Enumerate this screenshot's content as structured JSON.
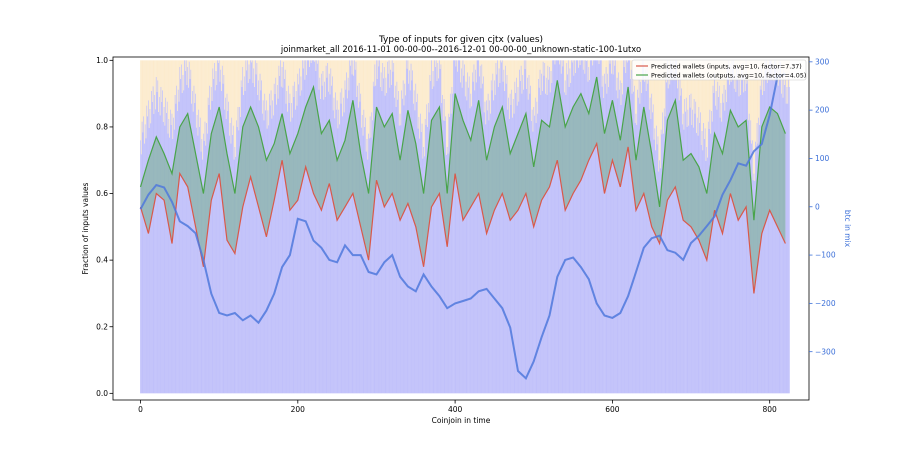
{
  "chart_data": {
    "type": "bar",
    "title": "Type of inputs for given cjtx (values)",
    "subtitle": "joinmarket_all 2016-11-01 00-00-00--2016-12-01 00-00-00_unknown-static-100-1utxo",
    "xlabel": "Coinjoin in time",
    "ylabel": "Fraction of inputs values",
    "y2label": "btc in mix",
    "xlim": [
      -35,
      850
    ],
    "ylim": [
      -0.02,
      1.01
    ],
    "y2lim": [
      -400,
      310
    ],
    "x_ticks": [
      0,
      200,
      400,
      600,
      800
    ],
    "y_ticks": [
      0.0,
      0.2,
      0.4,
      0.6,
      0.8,
      1.0
    ],
    "y2_ticks": [
      -300,
      -200,
      -100,
      0,
      100,
      200,
      300
    ],
    "grid": false,
    "legend_position": "top-right",
    "n_coinjoins": 826,
    "colors": {
      "bars": "#8e8ef5",
      "bars_top": "#fbe3b8",
      "inputs_line": "#d9594a",
      "outputs_line": "#49a44a",
      "mix_line": "#4f78dc",
      "axis2": "#3b6fd8"
    },
    "series": [
      {
        "name": "Predicted wallets (inputs, avg=10, factor=7.37)",
        "axis": "left",
        "x": [
          0,
          10,
          20,
          30,
          40,
          50,
          60,
          70,
          80,
          90,
          100,
          110,
          120,
          130,
          140,
          150,
          160,
          170,
          180,
          190,
          200,
          210,
          220,
          230,
          240,
          250,
          260,
          270,
          280,
          290,
          300,
          310,
          320,
          330,
          340,
          350,
          360,
          370,
          380,
          390,
          400,
          410,
          420,
          430,
          440,
          450,
          460,
          470,
          480,
          490,
          500,
          510,
          520,
          530,
          540,
          550,
          560,
          570,
          580,
          590,
          600,
          610,
          620,
          630,
          640,
          650,
          660,
          670,
          680,
          690,
          700,
          710,
          720,
          730,
          740,
          750,
          760,
          770,
          780,
          790,
          800,
          810,
          820
        ],
        "values": [
          0.56,
          0.48,
          0.6,
          0.58,
          0.45,
          0.66,
          0.62,
          0.5,
          0.38,
          0.58,
          0.66,
          0.46,
          0.42,
          0.56,
          0.65,
          0.56,
          0.47,
          0.58,
          0.7,
          0.55,
          0.58,
          0.68,
          0.6,
          0.55,
          0.63,
          0.52,
          0.56,
          0.6,
          0.5,
          0.4,
          0.64,
          0.56,
          0.6,
          0.52,
          0.57,
          0.5,
          0.38,
          0.56,
          0.6,
          0.44,
          0.66,
          0.52,
          0.56,
          0.6,
          0.48,
          0.55,
          0.6,
          0.52,
          0.55,
          0.6,
          0.5,
          0.58,
          0.62,
          0.7,
          0.55,
          0.6,
          0.64,
          0.7,
          0.75,
          0.6,
          0.7,
          0.62,
          0.74,
          0.55,
          0.6,
          0.5,
          0.45,
          0.58,
          0.62,
          0.52,
          0.5,
          0.46,
          0.4,
          0.55,
          0.48,
          0.6,
          0.52,
          0.56,
          0.3,
          0.48,
          0.55,
          0.5,
          0.45
        ]
      },
      {
        "name": "Predicted wallets (outputs, avg=10, factor=4.05)",
        "axis": "left",
        "x": [
          0,
          10,
          20,
          30,
          40,
          50,
          60,
          70,
          80,
          90,
          100,
          110,
          120,
          130,
          140,
          150,
          160,
          170,
          180,
          190,
          200,
          210,
          220,
          230,
          240,
          250,
          260,
          270,
          280,
          290,
          300,
          310,
          320,
          330,
          340,
          350,
          360,
          370,
          380,
          390,
          400,
          410,
          420,
          430,
          440,
          450,
          460,
          470,
          480,
          490,
          500,
          510,
          520,
          530,
          540,
          550,
          560,
          570,
          580,
          590,
          600,
          610,
          620,
          630,
          640,
          650,
          660,
          670,
          680,
          690,
          700,
          710,
          720,
          730,
          740,
          750,
          760,
          770,
          780,
          790,
          800,
          810,
          820
        ],
        "values": [
          0.62,
          0.7,
          0.77,
          0.72,
          0.66,
          0.8,
          0.84,
          0.72,
          0.6,
          0.78,
          0.86,
          0.72,
          0.6,
          0.8,
          0.86,
          0.8,
          0.7,
          0.75,
          0.84,
          0.72,
          0.78,
          0.86,
          0.92,
          0.78,
          0.82,
          0.7,
          0.76,
          0.88,
          0.72,
          0.6,
          0.86,
          0.8,
          0.84,
          0.7,
          0.85,
          0.75,
          0.6,
          0.82,
          0.86,
          0.6,
          0.9,
          0.82,
          0.76,
          0.88,
          0.7,
          0.8,
          0.86,
          0.72,
          0.78,
          0.84,
          0.68,
          0.82,
          0.8,
          0.94,
          0.8,
          0.86,
          0.9,
          0.84,
          0.95,
          0.78,
          0.88,
          0.76,
          0.92,
          0.7,
          0.86,
          0.72,
          0.56,
          0.82,
          0.88,
          0.7,
          0.72,
          0.68,
          0.6,
          0.78,
          0.72,
          0.85,
          0.8,
          0.82,
          0.52,
          0.8,
          0.86,
          0.84,
          0.78
        ]
      },
      {
        "name": "",
        "axis": "right",
        "x": [
          0,
          10,
          20,
          30,
          40,
          50,
          60,
          70,
          80,
          90,
          100,
          110,
          120,
          130,
          140,
          150,
          160,
          170,
          180,
          190,
          200,
          210,
          220,
          230,
          240,
          250,
          260,
          270,
          280,
          290,
          300,
          310,
          320,
          330,
          340,
          350,
          360,
          370,
          380,
          390,
          400,
          410,
          420,
          430,
          440,
          450,
          460,
          470,
          480,
          490,
          500,
          510,
          520,
          530,
          540,
          550,
          560,
          570,
          580,
          590,
          600,
          610,
          620,
          630,
          640,
          650,
          660,
          670,
          680,
          690,
          700,
          710,
          720,
          730,
          740,
          750,
          760,
          770,
          780,
          790,
          800,
          810,
          820
        ],
        "values": [
          -5,
          25,
          45,
          40,
          10,
          -30,
          -40,
          -55,
          -110,
          -180,
          -220,
          -225,
          -220,
          -235,
          -225,
          -240,
          -215,
          -180,
          -125,
          -100,
          -25,
          -30,
          -70,
          -85,
          -110,
          -115,
          -80,
          -100,
          -100,
          -135,
          -140,
          -115,
          -100,
          -145,
          -165,
          -175,
          -140,
          -165,
          -185,
          -210,
          -200,
          -195,
          -190,
          -175,
          -170,
          -190,
          -210,
          -250,
          -340,
          -355,
          -320,
          -270,
          -225,
          -145,
          -110,
          -105,
          -125,
          -150,
          -200,
          -225,
          -230,
          -220,
          -185,
          -135,
          -85,
          -65,
          -60,
          -90,
          -95,
          -110,
          -75,
          -60,
          -40,
          -20,
          25,
          55,
          90,
          85,
          115,
          130,
          190,
          270,
          275
        ]
      }
    ]
  }
}
